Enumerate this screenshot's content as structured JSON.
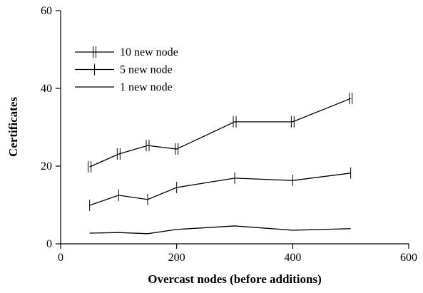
{
  "chart_data": {
    "type": "line",
    "x_label": "Overcast nodes (before additions)",
    "y_label": "Certificates",
    "xlim": [
      0,
      600
    ],
    "xticks": [
      0,
      200,
      400,
      600
    ],
    "ylim": [
      0,
      60
    ],
    "yticks": [
      0,
      20,
      40,
      60
    ],
    "legend": "upper left",
    "series": [
      {
        "name": "10 new node",
        "color": "#000000",
        "marker": "double-bar",
        "x": [
          50,
          100,
          150,
          200,
          300,
          400,
          500
        ],
        "values": [
          19.8,
          23.1,
          25.3,
          24.4,
          31.4,
          31.4,
          37.4
        ]
      },
      {
        "name": "5 new node",
        "color": "#000000",
        "marker": "bar",
        "x": [
          50,
          100,
          150,
          200,
          300,
          400,
          500
        ],
        "values": [
          9.9,
          12.5,
          11.4,
          14.5,
          16.9,
          16.3,
          18.2
        ]
      },
      {
        "name": "1 new node",
        "color": "#000000",
        "marker": "none",
        "x": [
          50,
          100,
          150,
          200,
          300,
          400,
          500
        ],
        "values": [
          2.75,
          2.9,
          2.6,
          3.7,
          4.6,
          3.5,
          3.9
        ]
      }
    ]
  }
}
